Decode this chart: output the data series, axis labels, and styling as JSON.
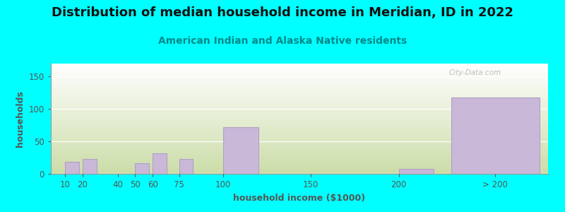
{
  "title": "Distribution of median household income in Meridian, ID in 2022",
  "subtitle": "American Indian and Alaska Native residents",
  "xlabel": "household income ($1000)",
  "ylabel": "households",
  "background_color": "#00FFFF",
  "plot_bg_top": "#FFFFFF",
  "plot_bg_bottom": "#CCDDA8",
  "bar_color": "#C9B8D8",
  "bar_edge_color": "#B0A0C8",
  "categories": [
    "10",
    "20",
    "40",
    "50",
    "60",
    "75",
    "100",
    "150",
    "200",
    "> 200"
  ],
  "values": [
    19,
    23,
    0,
    16,
    32,
    23,
    72,
    0,
    8,
    118
  ],
  "bar_positions": [
    10,
    20,
    40,
    50,
    60,
    75,
    100,
    150,
    200,
    230
  ],
  "bar_widths": [
    8,
    8,
    0,
    8,
    8,
    8,
    20,
    0,
    20,
    50
  ],
  "xlim": [
    2,
    285
  ],
  "ylim": [
    0,
    170
  ],
  "yticks": [
    0,
    50,
    100,
    150
  ],
  "tick_positions": [
    10,
    20,
    40,
    50,
    60,
    75,
    100,
    150,
    200,
    255
  ],
  "tick_labels": [
    "10",
    "20",
    "40",
    "50",
    "60",
    "75",
    "100",
    "150",
    "200",
    "> 200"
  ],
  "title_fontsize": 13,
  "subtitle_fontsize": 10,
  "axis_label_fontsize": 9,
  "tick_fontsize": 8.5,
  "watermark": "City-Data.com"
}
